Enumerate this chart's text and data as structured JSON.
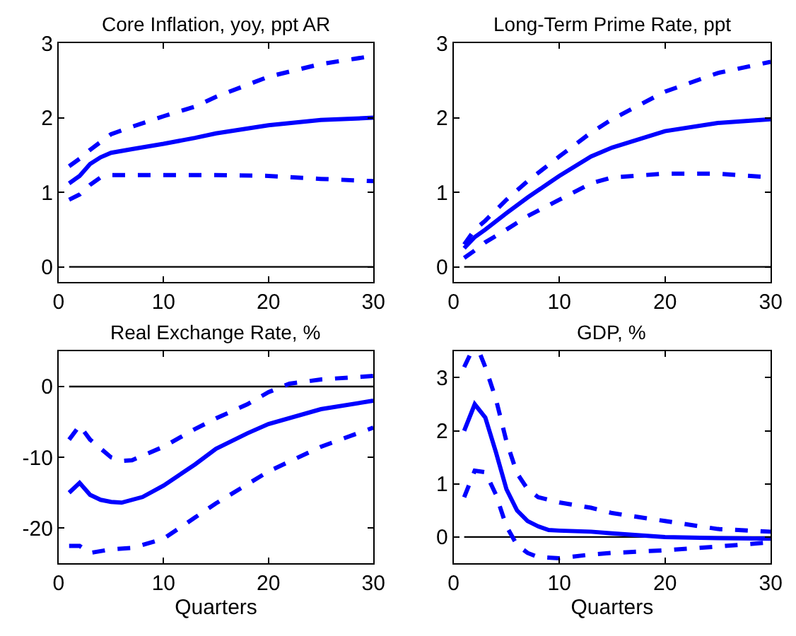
{
  "chart_data": [
    {
      "type": "line",
      "title": "Core Inflation, yoy, ppt AR",
      "xlim": [
        0,
        30
      ],
      "xticks": [
        0,
        10,
        20,
        30
      ],
      "ylim": [
        -0.2,
        3
      ],
      "yticks": [
        0,
        1,
        2,
        3
      ],
      "grid": false,
      "ref_lines": [
        {
          "axis": "y",
          "value": 0,
          "color": "#000000"
        }
      ],
      "series": [
        {
          "color": "#0000ff",
          "line_style": "solid",
          "x": [
            1,
            2,
            3,
            4,
            5,
            7,
            10,
            13,
            15,
            20,
            25,
            30
          ],
          "values": [
            1.12,
            1.22,
            1.38,
            1.47,
            1.53,
            1.58,
            1.65,
            1.73,
            1.79,
            1.9,
            1.97,
            2.0
          ]
        },
        {
          "color": "#0000ff",
          "line_style": "dashed",
          "x": [
            1,
            2,
            3,
            5,
            7,
            10,
            13,
            15,
            20,
            25,
            30
          ],
          "values": [
            1.35,
            1.45,
            1.57,
            1.78,
            1.88,
            2.02,
            2.15,
            2.28,
            2.55,
            2.72,
            2.83
          ]
        },
        {
          "color": "#0000ff",
          "line_style": "dashed",
          "x": [
            1,
            2,
            3,
            4,
            5,
            7,
            10,
            15,
            20,
            25,
            30
          ],
          "values": [
            0.9,
            0.97,
            1.1,
            1.2,
            1.23,
            1.23,
            1.23,
            1.23,
            1.22,
            1.18,
            1.15
          ]
        }
      ]
    },
    {
      "type": "line",
      "title": "Long-Term Prime Rate, ppt",
      "xlim": [
        0,
        30
      ],
      "xticks": [
        0,
        10,
        20,
        30
      ],
      "ylim": [
        -0.2,
        3
      ],
      "yticks": [
        0,
        1,
        2,
        3
      ],
      "grid": false,
      "ref_lines": [
        {
          "axis": "y",
          "value": 0,
          "color": "#000000"
        }
      ],
      "series": [
        {
          "color": "#0000ff",
          "line_style": "solid",
          "x": [
            1,
            2,
            3,
            5,
            7,
            10,
            13,
            15,
            20,
            25,
            30
          ],
          "values": [
            0.25,
            0.4,
            0.5,
            0.72,
            0.93,
            1.22,
            1.48,
            1.6,
            1.82,
            1.93,
            1.98
          ]
        },
        {
          "color": "#0000ff",
          "line_style": "dashed",
          "x": [
            1,
            2,
            3,
            5,
            7,
            10,
            13,
            15,
            20,
            25,
            30
          ],
          "values": [
            0.3,
            0.5,
            0.62,
            0.9,
            1.15,
            1.48,
            1.8,
            1.98,
            2.35,
            2.6,
            2.75
          ]
        },
        {
          "color": "#0000ff",
          "line_style": "dashed",
          "x": [
            1,
            2,
            3,
            5,
            7,
            10,
            13,
            15,
            20,
            25,
            30
          ],
          "values": [
            0.12,
            0.22,
            0.33,
            0.5,
            0.68,
            0.9,
            1.12,
            1.2,
            1.25,
            1.25,
            1.2
          ]
        }
      ]
    },
    {
      "type": "line",
      "title": "Real Exchange Rate, %",
      "xlabel": "Quarters",
      "xlim": [
        0,
        30
      ],
      "xticks": [
        0,
        10,
        20,
        30
      ],
      "ylim": [
        -25,
        5
      ],
      "yticks": [
        -20,
        -10,
        0
      ],
      "grid": false,
      "ref_lines": [
        {
          "axis": "y",
          "value": 0,
          "color": "#000000"
        }
      ],
      "series": [
        {
          "color": "#0000ff",
          "line_style": "solid",
          "x": [
            1,
            2,
            3,
            4,
            5,
            6,
            8,
            10,
            13,
            15,
            18,
            20,
            25,
            30
          ],
          "values": [
            -15,
            -13.6,
            -15.3,
            -16,
            -16.3,
            -16.4,
            -15.6,
            -14,
            -11,
            -8.8,
            -6.6,
            -5.3,
            -3.2,
            -2
          ]
        },
        {
          "color": "#0000ff",
          "line_style": "dashed",
          "x": [
            1,
            2,
            3,
            5,
            6,
            7,
            10,
            13,
            15,
            18,
            20,
            22,
            25,
            30
          ],
          "values": [
            -7.5,
            -5.5,
            -7.5,
            -10,
            -10.5,
            -10.4,
            -8.5,
            -6,
            -4.5,
            -2.5,
            -0.8,
            0.4,
            1,
            1.5
          ]
        },
        {
          "color": "#0000ff",
          "line_style": "dashed",
          "x": [
            1,
            2,
            3,
            5,
            7,
            10,
            13,
            15,
            20,
            25,
            30
          ],
          "values": [
            -22.5,
            -22.5,
            -23.5,
            -23,
            -22.8,
            -21.5,
            -18.5,
            -16.5,
            -12,
            -8.5,
            -5.8
          ]
        }
      ]
    },
    {
      "type": "line",
      "title": "GDP, %",
      "xlabel": "Quarters",
      "xlim": [
        0,
        30
      ],
      "xticks": [
        0,
        10,
        20,
        30
      ],
      "ylim": [
        -0.5,
        3.5
      ],
      "yticks": [
        0,
        1,
        2,
        3
      ],
      "grid": false,
      "ref_lines": [
        {
          "axis": "y",
          "value": 0,
          "color": "#000000"
        }
      ],
      "series": [
        {
          "color": "#0000ff",
          "line_style": "solid",
          "x": [
            1,
            2,
            3,
            4,
            5,
            6,
            7,
            8,
            9,
            10,
            13,
            15,
            20,
            25,
            30
          ],
          "values": [
            2.0,
            2.5,
            2.25,
            1.6,
            0.9,
            0.5,
            0.3,
            0.2,
            0.13,
            0.12,
            0.1,
            0.07,
            0.0,
            -0.02,
            -0.03
          ]
        },
        {
          "color": "#0000ff",
          "line_style": "dashed",
          "x": [
            1,
            1.6,
            2.5,
            3,
            4,
            5,
            6,
            7,
            8,
            10,
            13,
            15,
            20,
            25,
            30
          ],
          "values": [
            3.2,
            3.45,
            3.45,
            3.2,
            2.6,
            1.8,
            1.2,
            0.9,
            0.75,
            0.65,
            0.55,
            0.45,
            0.3,
            0.15,
            0.1
          ]
        },
        {
          "color": "#0000ff",
          "line_style": "dashed",
          "x": [
            1,
            2,
            3,
            4,
            5,
            6,
            7,
            8,
            10,
            13,
            15,
            20,
            25,
            30
          ],
          "values": [
            0.75,
            1.25,
            1.22,
            0.8,
            0.2,
            -0.15,
            -0.3,
            -0.38,
            -0.4,
            -0.33,
            -0.3,
            -0.25,
            -0.18,
            -0.1
          ]
        }
      ]
    }
  ]
}
